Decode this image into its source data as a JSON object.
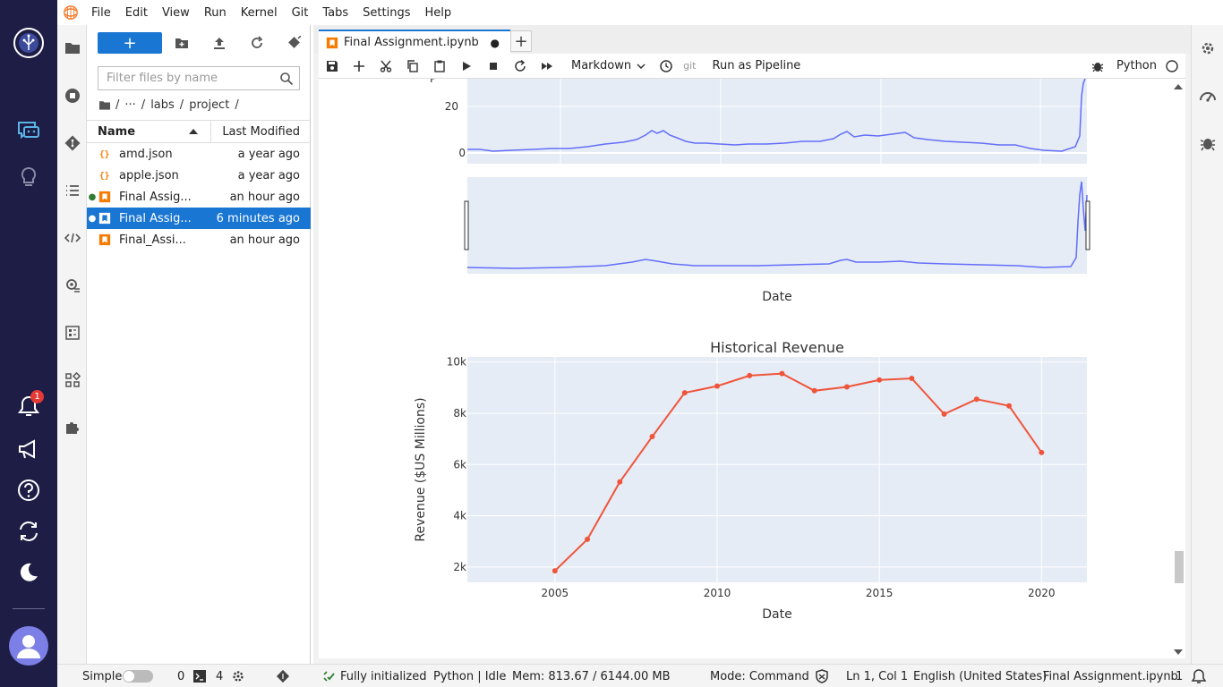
{
  "menu": {
    "items": [
      "File",
      "Edit",
      "View",
      "Run",
      "Kernel",
      "Git",
      "Tabs",
      "Settings",
      "Help"
    ]
  },
  "rail": {
    "notification_count": "1"
  },
  "filebrowser": {
    "filter_placeholder": "Filter files by name",
    "breadcrumb": {
      "sep": "/",
      "ellipsis": "···",
      "labs": "labs",
      "project": "project"
    },
    "columns": {
      "name": "Name",
      "modified": "Last Modified"
    },
    "files": [
      {
        "name": "amd.json",
        "modified": "a year ago",
        "type": "json",
        "running": false,
        "selected": false
      },
      {
        "name": "apple.json",
        "modified": "a year ago",
        "type": "json",
        "running": false,
        "selected": false
      },
      {
        "name": "Final Assig...",
        "modified": "an hour ago",
        "type": "notebook",
        "running": true,
        "selected": false
      },
      {
        "name": "Final Assig...",
        "modified": "6 minutes ago",
        "type": "notebook",
        "running": true,
        "selected": true
      },
      {
        "name": "Final_Assi...",
        "modified": "an hour ago",
        "type": "notebook",
        "running": false,
        "selected": false
      }
    ]
  },
  "tab": {
    "title": "Final Assignment.ipynb",
    "dirty_marker": "●"
  },
  "toolbar": {
    "cell_type": "Markdown",
    "git_label": "git",
    "run_pipeline": "Run as Pipeline",
    "kernel": "Python"
  },
  "top_chart": {
    "ytick_20": "20",
    "ytick_0": "0",
    "xlabel": "Date"
  },
  "chart_data": {
    "type": "line",
    "title": "Historical Revenue",
    "xlabel": "Date",
    "ylabel": "Revenue ($US Millions)",
    "x": [
      2005,
      2006,
      2007,
      2008,
      2009,
      2010,
      2011,
      2012,
      2013,
      2014,
      2015,
      2016,
      2017,
      2018,
      2019,
      2020
    ],
    "values": [
      1850,
      3080,
      5320,
      7090,
      8800,
      9060,
      9470,
      9550,
      8880,
      9030,
      9300,
      9360,
      7970,
      8550,
      8290,
      6470
    ],
    "xticks": [
      "2005",
      "2010",
      "2015",
      "2020"
    ],
    "yticks": [
      "2k",
      "4k",
      "6k",
      "8k",
      "10k"
    ],
    "xlim": [
      2002.3,
      2021.4
    ],
    "ylim": [
      1400,
      10200
    ],
    "grid": true,
    "line_color": "#ef553b",
    "plot_bg": "#e5ecf6"
  },
  "status": {
    "simple": "Simple",
    "zero": "0",
    "terminals": "4",
    "init": "Fully initialized",
    "kernel": "Python | Idle",
    "mem": "Mem: 813.67 / 6144.00 MB",
    "mode": "Mode: Command",
    "cursor": "Ln 1, Col 1",
    "lang": "English (United States)",
    "file": "Final Assignment.ipynb",
    "count": "1"
  }
}
